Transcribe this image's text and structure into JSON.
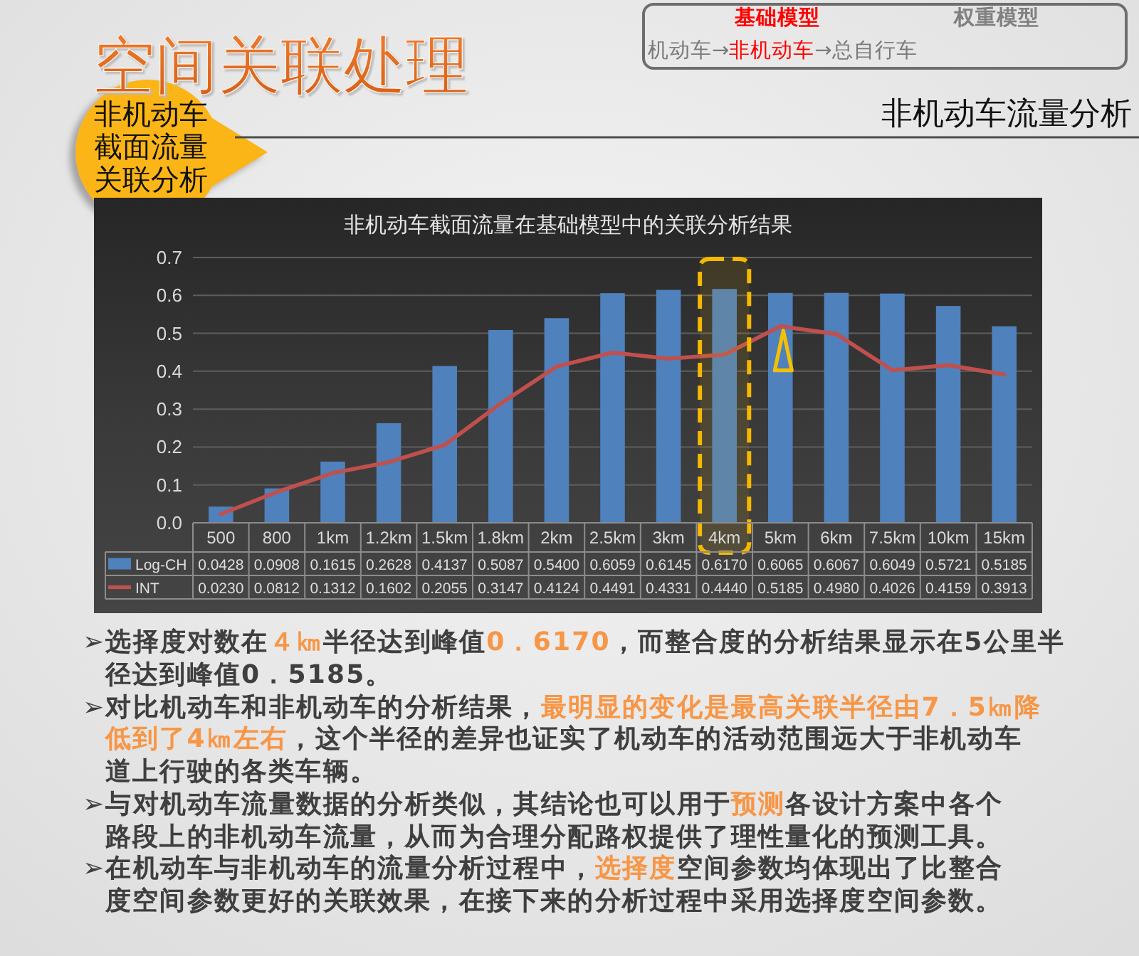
{
  "chart_data": {
    "type": "bar",
    "title": "非机动车截面流量在基础模型中的关联分析结果",
    "categories": [
      "500",
      "800",
      "1km",
      "1.2km",
      "1.5km",
      "1.8km",
      "2km",
      "2.5km",
      "3km",
      "4km",
      "5km",
      "6km",
      "7.5km",
      "10km",
      "15km"
    ],
    "series": [
      {
        "name": "Log-CH",
        "color": "#4f81bd",
        "values": [
          0.0428,
          0.0908,
          0.1615,
          0.2628,
          0.4137,
          0.5087,
          0.54,
          0.6059,
          0.6145,
          0.617,
          0.6065,
          0.6067,
          0.6049,
          0.5721,
          0.5185
        ],
        "value_labels": [
          "0.0428",
          "0.0908",
          "0.1615",
          "0.2628",
          "0.4137",
          "0.5087",
          "0.5400",
          "0.6059",
          "0.6145",
          "0.6170",
          "0.6065",
          "0.6067",
          "0.6049",
          "0.5721",
          "0.5185"
        ]
      },
      {
        "name": "INT",
        "type": "line",
        "color": "#c0504d",
        "values": [
          0.023,
          0.0812,
          0.1312,
          0.1602,
          0.2055,
          0.3147,
          0.4124,
          0.4491,
          0.4331,
          0.444,
          0.5185,
          0.498,
          0.4026,
          0.4159,
          0.3913
        ],
        "value_labels": [
          "0.0230",
          "0.0812",
          "0.1312",
          "0.1602",
          "0.2055",
          "0.3147",
          "0.4124",
          "0.4491",
          "0.4331",
          "0.4440",
          "0.5185",
          "0.4980",
          "0.4026",
          "0.4159",
          "0.3913"
        ]
      }
    ],
    "ylim": [
      0,
      0.7
    ],
    "yticks": [
      {
        "value": 0,
        "label": "0.0"
      },
      0.1,
      0.2,
      0.3,
      0.4,
      0.5,
      0.6,
      0.7
    ],
    "grid": "y",
    "legend": "bottom",
    "bands": [
      {
        "axis": "x",
        "from": "4km",
        "to": "4km",
        "color": "#f5b800"
      }
    ],
    "annotations": [
      "空间关联处理",
      "基础模型",
      "权重模型",
      "机动车→",
      "非机动车",
      "→总自行车",
      "非机动车截面流量关联分析",
      "非机动车流量分析",
      "➢选择度对数在",
      "４㎞",
      "半径达到峰值",
      "0．6170",
      "，而整合度的分析结果显示在5公里半",
      "径达到峰值0．5185。",
      "➢对比机动车和非机动车的分析结果，",
      "最明显的变化是最高关联半径由7．5㎞降",
      "低到了4㎞左右",
      "，这个半径的差异也证实了机动车的活动范围远大于非机动车",
      "道上行驶的各类车辆。",
      "➢与对机动车流量数据的分析类似，其结论也可以用于",
      "预测",
      "各设计方案中各个",
      "路段上的非机动车流量，从而为合理分配路权提供了理性量化的预测工具。",
      "➢在机动车与非机动车的流量分析过程中，",
      "选择度",
      "空间参数均体现出了比整合",
      "度空间参数更好的关联效果，在接下来的分析过程中采用选择度空间参数。"
    ]
  }
}
